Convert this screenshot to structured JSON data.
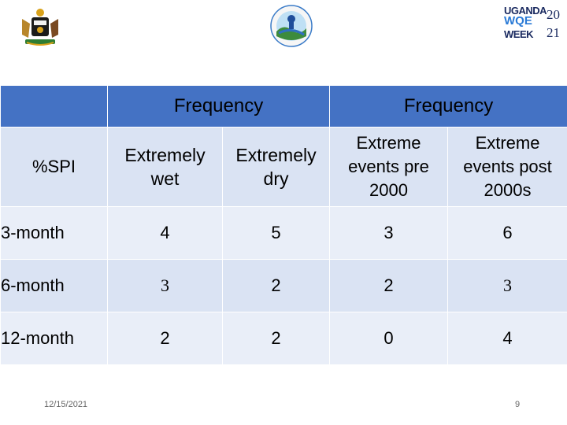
{
  "header": {
    "badge": {
      "line1": "UGANDA",
      "line2_word": "WQE",
      "line3": "WEEK",
      "year_top": "20",
      "year_bottom": "21"
    }
  },
  "table": {
    "spi_header": "%SPI",
    "group_header_1": "Frequency",
    "group_header_2": "Frequency",
    "sub_headers": [
      [
        "Extremely",
        "wet"
      ],
      [
        "Extremely",
        "dry"
      ],
      [
        "Extreme",
        "events pre",
        "2000"
      ],
      [
        "Extreme",
        "events post",
        "2000s"
      ]
    ],
    "rows": [
      {
        "label": "3-month",
        "values": [
          "4",
          "5",
          "3",
          "6"
        ]
      },
      {
        "label": "6-month",
        "values": [
          "3",
          "2",
          "2",
          "3"
        ]
      },
      {
        "label": "12-month",
        "values": [
          "2",
          "2",
          "0",
          "4"
        ]
      }
    ]
  },
  "footer": {
    "date": "12/15/2021",
    "page": "9"
  },
  "colors": {
    "header_blue": "#4472c4",
    "row_dark": "#dae3f3",
    "row_light": "#e9eef8"
  },
  "logos": [
    "uganda-coat-of-arms",
    "ministry-water-environment-seal"
  ]
}
